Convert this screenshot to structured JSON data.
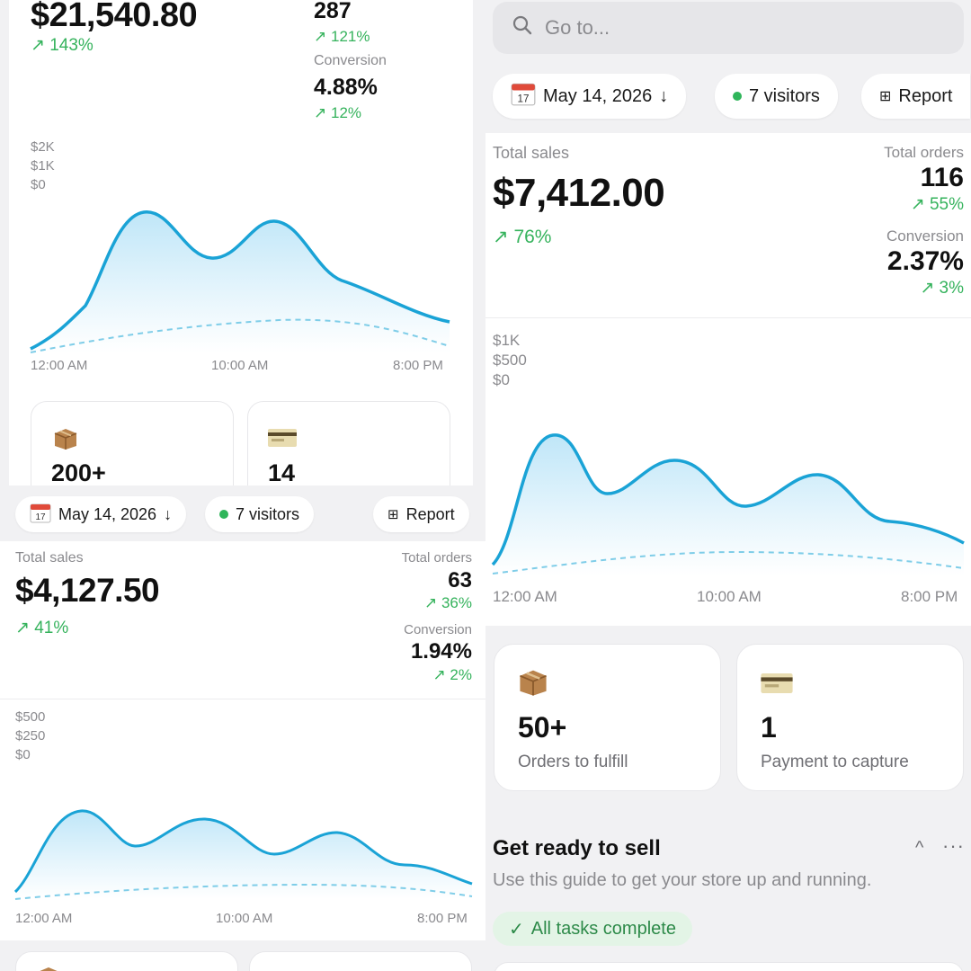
{
  "panel_a": {
    "sales_value": "$21,540.80",
    "sales_change": "143%",
    "orders_value": "287",
    "orders_change": "121%",
    "conversion_label": "Conversion",
    "conversion_value": "4.88%",
    "conversion_change": "12%",
    "y_labels": [
      "$2K",
      "$1K",
      "$0"
    ],
    "x_labels": [
      "12:00 AM",
      "10:00 AM",
      "8:00 PM"
    ],
    "cards": [
      {
        "icon": "package-icon",
        "value": "200+"
      },
      {
        "icon": "credit-card-icon",
        "value": "14"
      }
    ]
  },
  "panel_b": {
    "date": "May 14, 2026",
    "visitors": "7 visitors",
    "report": "Report",
    "sales_label": "Total sales",
    "sales_value": "$4,127.50",
    "sales_change": "41%",
    "orders_label": "Total orders",
    "orders_value": "63",
    "orders_change": "36%",
    "conversion_label": "Conversion",
    "conversion_value": "1.94%",
    "conversion_change": "2%",
    "y_labels": [
      "$500",
      "$250",
      "$0"
    ],
    "x_labels": [
      "12:00 AM",
      "10:00 AM",
      "8:00 PM"
    ]
  },
  "panel_c": {
    "search_placeholder": "Go to...",
    "date": "May 14, 2026",
    "visitors": "7 visitors",
    "report": "Report",
    "sales_label": "Total sales",
    "sales_value": "$7,412.00",
    "sales_change": "76%",
    "orders_label": "Total orders",
    "orders_value": "116",
    "orders_change": "55%",
    "conversion_label": "Conversion",
    "conversion_value": "2.37%",
    "conversion_change": "3%",
    "y_labels": [
      "$1K",
      "$500",
      "$0"
    ],
    "x_labels": [
      "12:00 AM",
      "10:00 AM",
      "8:00 PM"
    ],
    "cards": [
      {
        "icon": "package-icon",
        "value": "50+",
        "label": "Orders to fulfill"
      },
      {
        "icon": "credit-card-icon",
        "value": "1",
        "label": "Payment to capture"
      }
    ],
    "guide_title": "Get ready to sell",
    "guide_subtitle": "Use this guide to get your store up and running.",
    "guide_status": "All tasks complete"
  },
  "colors": {
    "line": "#1aa3d6",
    "area_top": "#bfe6f8",
    "positive": "#36b35d",
    "calendar_icon": "calendar-icon",
    "report_icon": "table-icon"
  }
}
